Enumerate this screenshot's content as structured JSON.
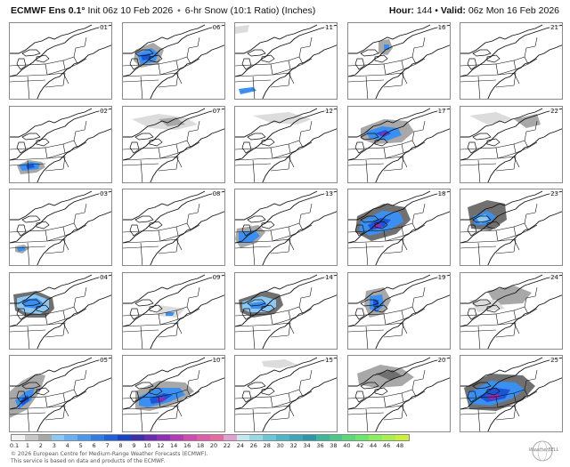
{
  "header": {
    "model": "ECMWF Ens 0.1°",
    "init": "Init 06z 10 Feb 2026",
    "separator": "•",
    "product": "6-hr Snow (10:1 Ratio) (Inches)",
    "hour_label": "Hour:",
    "hour": "144",
    "valid_sep": "•",
    "valid_label": "Valid:",
    "valid": "06z Mon 16 Feb 2026"
  },
  "members": [
    "01",
    "02",
    "03",
    "04",
    "05",
    "06",
    "07",
    "08",
    "09",
    "10",
    "11",
    "12",
    "13",
    "14",
    "15",
    "16",
    "17",
    "18",
    "19",
    "20",
    "21",
    "22",
    "23",
    "24",
    "25"
  ],
  "grid": {
    "columns": 5,
    "rows": 5,
    "order": "column-major"
  },
  "snow_colors": {
    "gray_light": "#dcdcdc",
    "gray": "#a8a8a8",
    "gray_dark": "#707070",
    "blue_light": "#8cc8f5",
    "blue": "#3a8ff0",
    "blue_dark": "#1a55d8",
    "purple": "#8a2fb4"
  },
  "legend": {
    "labels": [
      "0.1",
      "1",
      "2",
      "3",
      "4",
      "5",
      "6",
      "7",
      "8",
      "9",
      "10",
      "12",
      "14",
      "16",
      "18",
      "20",
      "22",
      "24",
      "26",
      "28",
      "30",
      "32",
      "34",
      "36",
      "38",
      "40",
      "42",
      "44",
      "46",
      "48"
    ],
    "colors": [
      "#f2f2f2",
      "#c8c8c8",
      "#a8a8a8",
      "#8cc8f5",
      "#6ab0f2",
      "#4a98ee",
      "#2f7ee8",
      "#1f62dc",
      "#1745c4",
      "#3b2fb0",
      "#6a2ab4",
      "#8f2fb8",
      "#b43ab8",
      "#d24ab0",
      "#e25aa8",
      "#e86aa0",
      "#e2a0d0",
      "#c8e8f0",
      "#9ad8e8",
      "#6ac8d8",
      "#4ab8c8",
      "#3aa8b8",
      "#2a98a8",
      "#3ab89a",
      "#4ac88a",
      "#5ad87a",
      "#6ae86a",
      "#8af05a",
      "#aaf04a",
      "#ccf03a"
    ]
  },
  "footer": {
    "copyright": "© 2026 European Centre for Medium-Range Weather Forecasts (ECMWF).",
    "notice": "This service is based on data and products of the ECMWF."
  },
  "logo": {
    "text": "WeatherBELL"
  }
}
